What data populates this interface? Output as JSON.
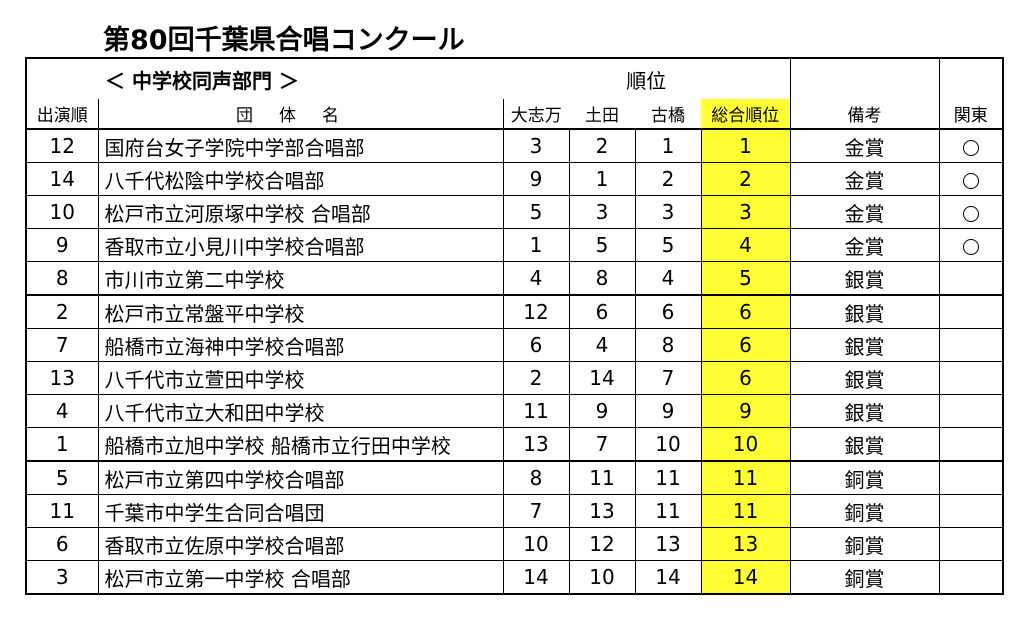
{
  "title": "第80回千葉県合唱コンクール",
  "department": "＜ 中学校同声部門 ＞",
  "headers": {
    "judge_group": "順位",
    "order": "出演順",
    "name": "団体名",
    "j1": "大志万",
    "j2": "土田",
    "j3": "古橋",
    "total_rank": "総合順位",
    "notes": "備考",
    "kanto": "関東"
  },
  "rows": [
    {
      "order": "12",
      "name": "国府台女子学院中学部合唱部",
      "j1": "3",
      "j2": "2",
      "j3": "1",
      "rank": "1",
      "award": "金賞",
      "kanto": true
    },
    {
      "order": "14",
      "name": "八千代松陰中学校合唱部",
      "j1": "9",
      "j2": "1",
      "j3": "2",
      "rank": "2",
      "award": "金賞",
      "kanto": true
    },
    {
      "order": "10",
      "name": "松戸市立河原塚中学校 合唱部",
      "j1": "5",
      "j2": "3",
      "j3": "3",
      "rank": "3",
      "award": "金賞",
      "kanto": true
    },
    {
      "order": "9",
      "name": "香取市立小見川中学校合唱部",
      "j1": "1",
      "j2": "5",
      "j3": "5",
      "rank": "4",
      "award": "金賞",
      "kanto": true
    },
    {
      "order": "8",
      "name": "市川市立第二中学校",
      "j1": "4",
      "j2": "8",
      "j3": "4",
      "rank": "5",
      "award": "銀賞",
      "kanto": false
    },
    {
      "order": "2",
      "name": "松戸市立常盤平中学校",
      "j1": "12",
      "j2": "6",
      "j3": "6",
      "rank": "6",
      "award": "銀賞",
      "kanto": false
    },
    {
      "order": "7",
      "name": "船橋市立海神中学校合唱部",
      "j1": "6",
      "j2": "4",
      "j3": "8",
      "rank": "6",
      "award": "銀賞",
      "kanto": false
    },
    {
      "order": "13",
      "name": "八千代市立萱田中学校",
      "j1": "2",
      "j2": "14",
      "j3": "7",
      "rank": "6",
      "award": "銀賞",
      "kanto": false
    },
    {
      "order": "4",
      "name": "八千代市立大和田中学校",
      "j1": "11",
      "j2": "9",
      "j3": "9",
      "rank": "9",
      "award": "銀賞",
      "kanto": false
    },
    {
      "order": "1",
      "name": "船橋市立旭中学校 船橋市立行田中学校",
      "j1": "13",
      "j2": "7",
      "j3": "10",
      "rank": "10",
      "award": "銀賞",
      "kanto": false
    },
    {
      "order": "5",
      "name": "松戸市立第四中学校合唱部",
      "j1": "8",
      "j2": "11",
      "j3": "11",
      "rank": "11",
      "award": "銅賞",
      "kanto": false
    },
    {
      "order": "11",
      "name": "千葉市中学生合同合唱団",
      "j1": "7",
      "j2": "13",
      "j3": "11",
      "rank": "11",
      "award": "銅賞",
      "kanto": false
    },
    {
      "order": "6",
      "name": "香取市立佐原中学校合唱部",
      "j1": "10",
      "j2": "12",
      "j3": "13",
      "rank": "13",
      "award": "銅賞",
      "kanto": false
    },
    {
      "order": "3",
      "name": "松戸市立第一中学校 合唱部",
      "j1": "14",
      "j2": "10",
      "j3": "14",
      "rank": "14",
      "award": "銅賞",
      "kanto": false
    }
  ],
  "kanto_mark": "○",
  "colors": {
    "rank_highlight": "#ffff33",
    "border": "#000000",
    "background": "#ffffff"
  }
}
